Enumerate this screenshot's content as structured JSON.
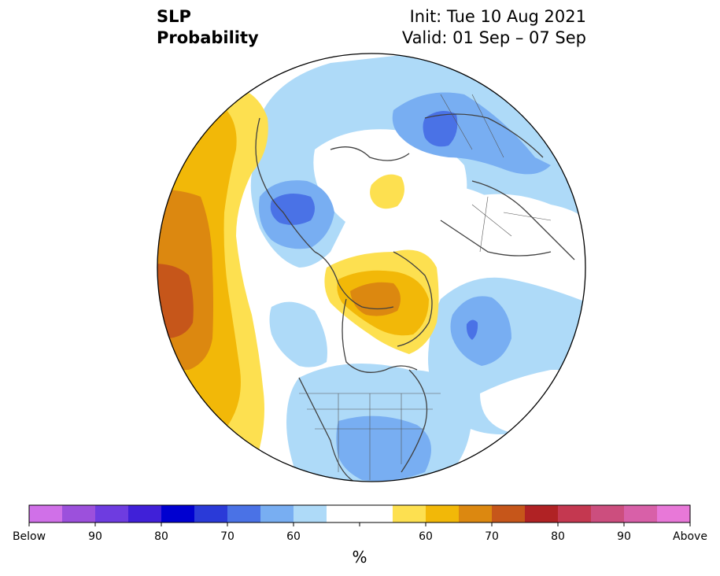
{
  "title": {
    "left_line1": "SLP",
    "left_line2": "Probability",
    "right_line1": "Init: Tue 10 Aug 2021",
    "right_line2": "Valid: 01 Sep – 07 Sep"
  },
  "colors": {
    "below": [
      "#d070e8",
      "#9c50dc",
      "#6e3ce0",
      "#4020d8",
      "#0000d0",
      "#2a3ad8",
      "#4a72e6",
      "#78aef2",
      "#aedaf8"
    ],
    "neutral": "#ffffff",
    "above": [
      "#fde050",
      "#f2b808",
      "#dc8810",
      "#c6561a",
      "#b02224",
      "#c43850",
      "#cc4e7e",
      "#d860a8",
      "#e878d8"
    ]
  },
  "colorbar": {
    "unit": "%",
    "labels": [
      "Below",
      "90",
      "80",
      "70",
      "60",
      "60",
      "70",
      "80",
      "90",
      "Above"
    ]
  }
}
